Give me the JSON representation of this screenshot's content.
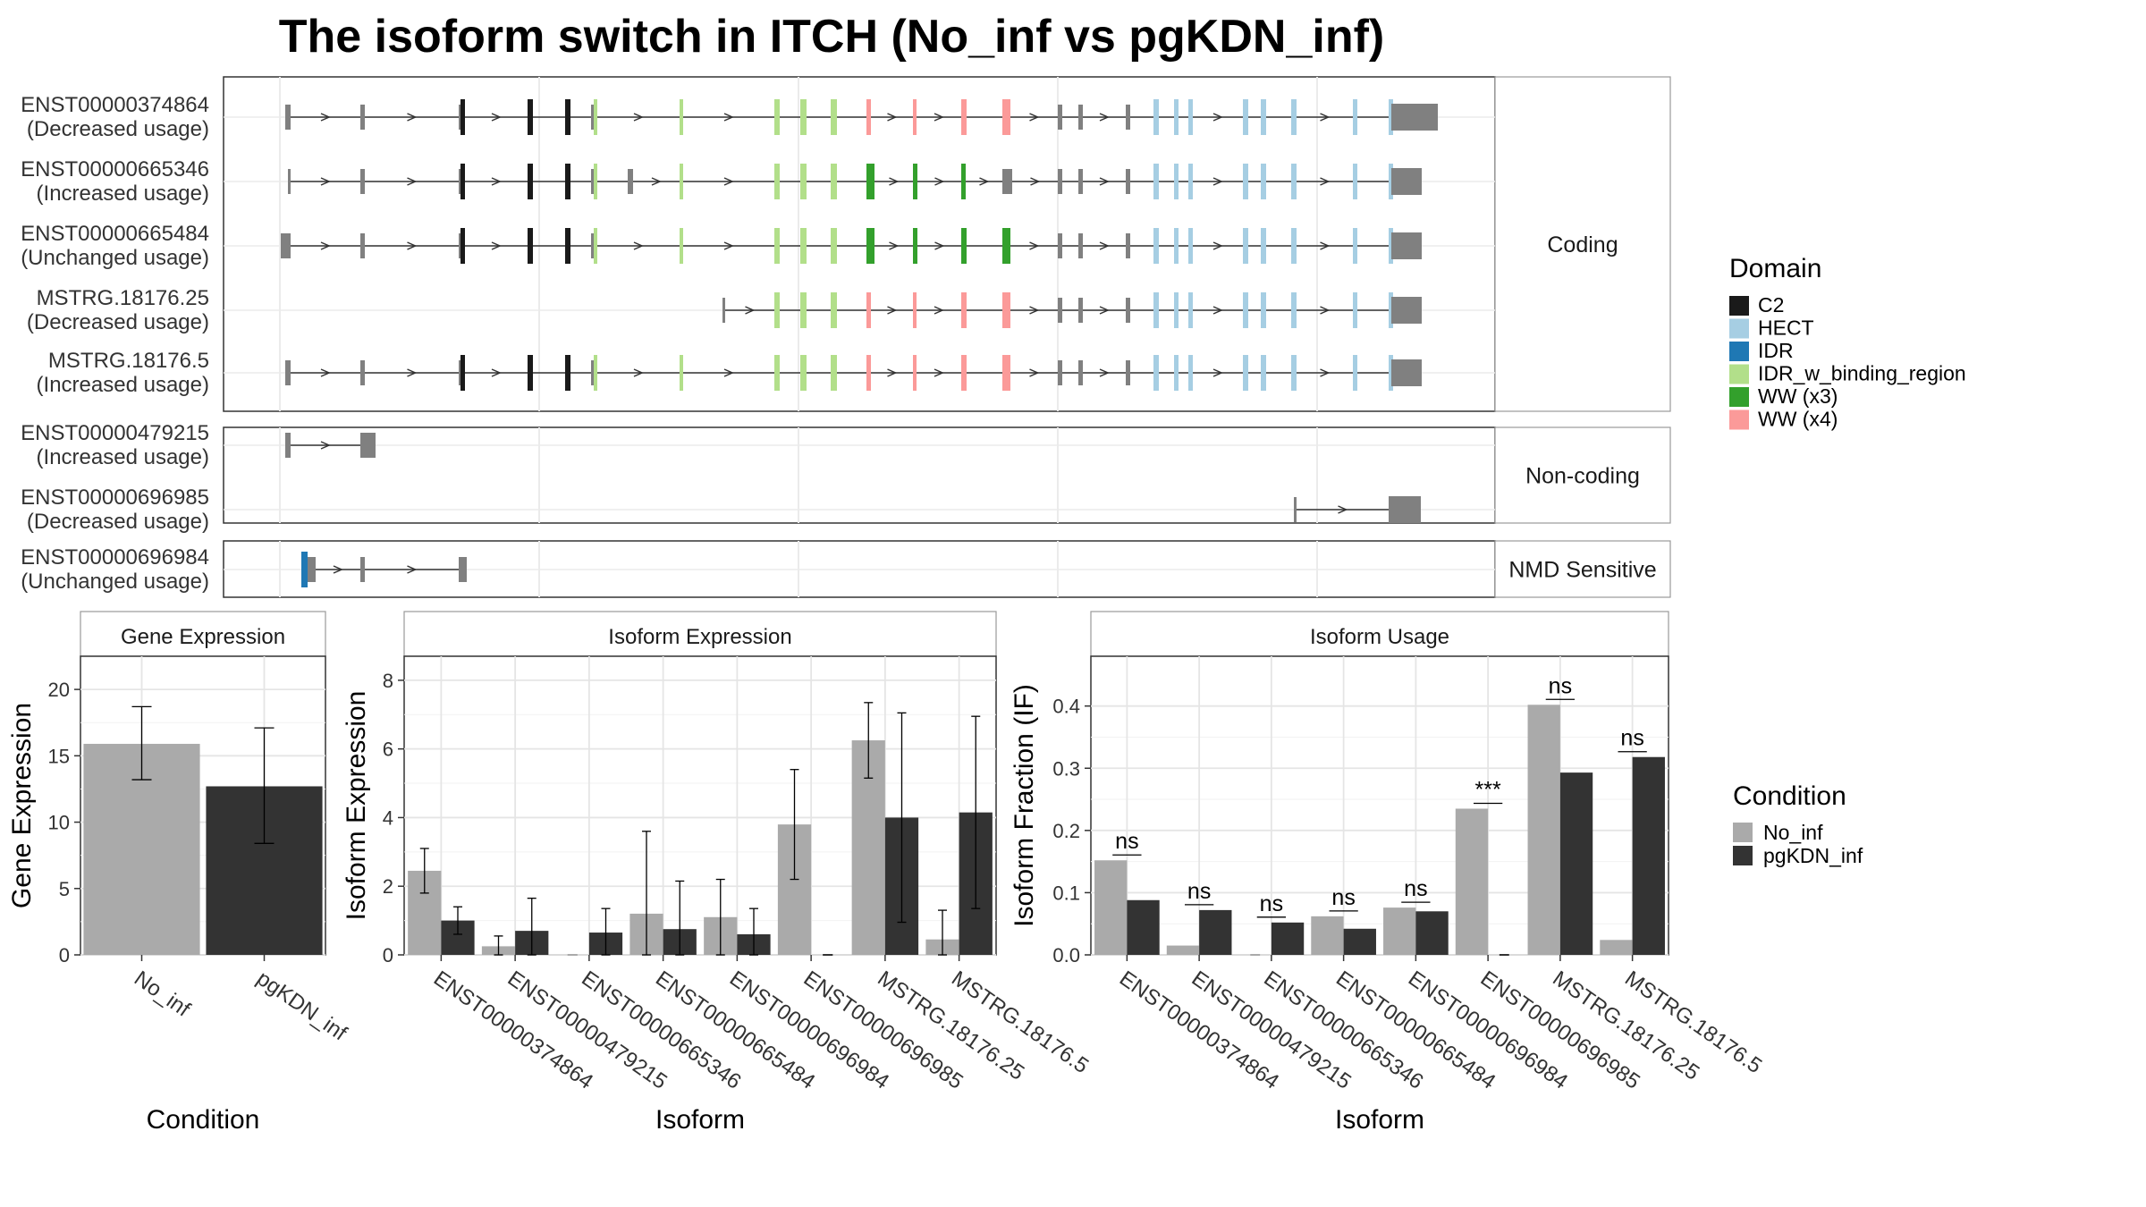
{
  "title": "The isoform switch in ITCH (No_inf vs pgKDN_inf)",
  "chart_data": [
    {
      "type": "other",
      "subtype": "transcript-structure",
      "groups": [
        {
          "label": "Coding",
          "transcripts": [
            {
              "id": "ENST00000374864",
              "usage": "(Decreased usage)"
            },
            {
              "id": "ENST00000665346",
              "usage": "(Increased usage)"
            },
            {
              "id": "ENST00000665484",
              "usage": "(Unchanged usage)"
            },
            {
              "id": "MSTRG.18176.25",
              "usage": "(Decreased usage)"
            },
            {
              "id": "MSTRG.18176.5",
              "usage": "(Increased usage)"
            }
          ]
        },
        {
          "label": "Non-coding",
          "transcripts": [
            {
              "id": "ENST00000479215",
              "usage": "(Increased usage)"
            },
            {
              "id": "ENST00000696985",
              "usage": "(Decreased usage)"
            }
          ]
        },
        {
          "label": "NMD Sensitive",
          "transcripts": [
            {
              "id": "ENST00000696984",
              "usage": "(Unchanged usage)"
            }
          ]
        }
      ],
      "legend": {
        "title": "Domain",
        "entries": [
          {
            "name": "C2",
            "color": "#1a1a1a"
          },
          {
            "name": "HECT",
            "color": "#a6cee3"
          },
          {
            "name": "IDR",
            "color": "#1f78b4"
          },
          {
            "name": "IDR_w_binding_region",
            "color": "#b2df8a"
          },
          {
            "name": "WW (x3)",
            "color": "#33a02c"
          },
          {
            "name": "WW (x4)",
            "color": "#fb9a99"
          }
        ]
      }
    },
    {
      "type": "bar",
      "title": "Gene Expression",
      "xlabel": "Condition",
      "ylabel": "Gene Expression",
      "categories": [
        "No_inf",
        "pgKDN_inf"
      ],
      "values": [
        15.9,
        12.7
      ],
      "errors": [
        [
          13.2,
          18.7
        ],
        [
          8.4,
          17.1
        ]
      ],
      "colors": [
        "#aaaaaa",
        "#333333"
      ],
      "ylim": [
        0,
        22.5
      ],
      "yticks": [
        "0",
        "5",
        "10",
        "15",
        "20"
      ],
      "grid": true
    },
    {
      "type": "bar",
      "title": "Isoform Expression",
      "xlabel": "Isoform",
      "ylabel": "Isoform Expression",
      "categories": [
        "ENST00000374864",
        "ENST00000479215",
        "ENST00000665346",
        "ENST00000665484",
        "ENST00000696984",
        "ENST00000696985",
        "MSTRG.18176.25",
        "MSTRG.18176.5"
      ],
      "series": [
        {
          "name": "No_inf",
          "color": "#aaaaaa",
          "values": [
            2.45,
            0.25,
            0.0,
            1.2,
            1.1,
            3.8,
            6.25,
            0.45
          ],
          "errors": [
            [
              1.8,
              3.1
            ],
            [
              0.0,
              0.55
            ],
            [
              0.0,
              0.0
            ],
            [
              0.0,
              3.6
            ],
            [
              0.0,
              2.2
            ],
            [
              2.2,
              5.4
            ],
            [
              5.15,
              7.35
            ],
            [
              0.0,
              1.3
            ]
          ]
        },
        {
          "name": "pgKDN_inf",
          "color": "#333333",
          "values": [
            1.0,
            0.7,
            0.65,
            0.75,
            0.6,
            0.0,
            4.0,
            4.15
          ],
          "errors": [
            [
              0.6,
              1.4
            ],
            [
              0.0,
              1.65
            ],
            [
              0.0,
              1.35
            ],
            [
              0.0,
              2.15
            ],
            [
              0.0,
              1.35
            ],
            [
              0.0,
              0.0
            ],
            [
              0.95,
              7.05
            ],
            [
              1.35,
              6.95
            ]
          ]
        }
      ],
      "ylim": [
        0,
        8.7
      ],
      "yticks": [
        "0",
        "2",
        "4",
        "6",
        "8"
      ],
      "grid": true
    },
    {
      "type": "bar",
      "title": "Isoform Usage",
      "xlabel": "Isoform",
      "ylabel": "Isoform Fraction (IF)",
      "categories": [
        "ENST00000374864",
        "ENST00000479215",
        "ENST00000665346",
        "ENST00000665484",
        "ENST00000696984",
        "ENST00000696985",
        "MSTRG.18176.25",
        "MSTRG.18176.5"
      ],
      "series": [
        {
          "name": "No_inf",
          "color": "#aaaaaa",
          "values": [
            0.152,
            0.015,
            0.0,
            0.062,
            0.076,
            0.235,
            0.402,
            0.024
          ]
        },
        {
          "name": "pgKDN_inf",
          "color": "#333333",
          "values": [
            0.088,
            0.072,
            0.052,
            0.042,
            0.07,
            0.0,
            0.293,
            0.318
          ]
        }
      ],
      "significance": [
        "ns",
        "ns",
        "ns",
        "ns",
        "ns",
        "***",
        "ns",
        "ns"
      ],
      "ylim": [
        0,
        0.48
      ],
      "yticks": [
        "0.0",
        "0.1",
        "0.2",
        "0.3",
        "0.4"
      ],
      "grid": true,
      "legend": {
        "title": "Condition",
        "position": "right"
      }
    }
  ]
}
